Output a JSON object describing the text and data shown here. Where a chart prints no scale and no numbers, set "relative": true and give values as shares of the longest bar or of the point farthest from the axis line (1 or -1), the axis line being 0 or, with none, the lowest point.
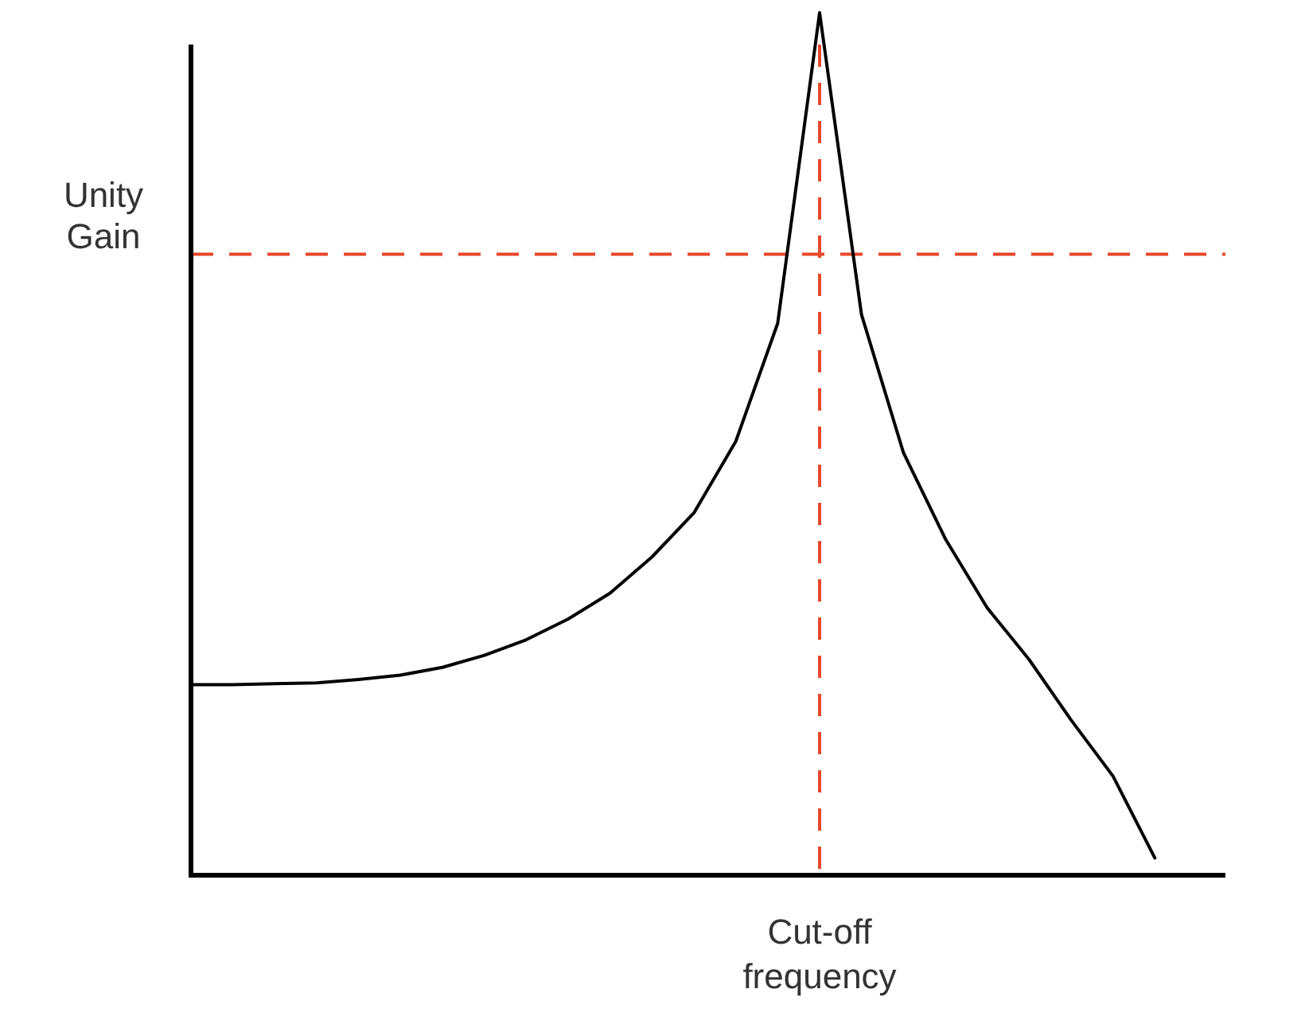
{
  "chart_data": {
    "type": "line",
    "relative": true,
    "line_style": "solid",
    "categories": [
      null,
      null,
      null,
      null,
      null,
      null,
      null,
      null,
      null,
      null,
      null,
      null,
      null,
      null,
      null,
      null,
      null,
      null,
      null,
      null,
      null,
      null,
      null,
      null
    ],
    "series": [
      {
        "color": "#000000",
        "values": [
          0.221,
          0.221,
          0.222,
          0.223,
          0.227,
          0.232,
          0.241,
          0.255,
          0.273,
          0.297,
          0.327,
          0.369,
          0.42,
          0.503,
          0.64,
          1,
          0.65,
          0.49,
          0.39,
          0.31,
          0.25,
          0.18,
          0.115,
          0.02
        ]
      }
    ],
    "ref_lines": [
      {
        "axis": "y",
        "value": 0.72,
        "label": "Unity Gain",
        "color": "#e8472b",
        "line_style": "dashed"
      }
    ],
    "annotations": [
      "Cut-off frequency"
    ]
  }
}
